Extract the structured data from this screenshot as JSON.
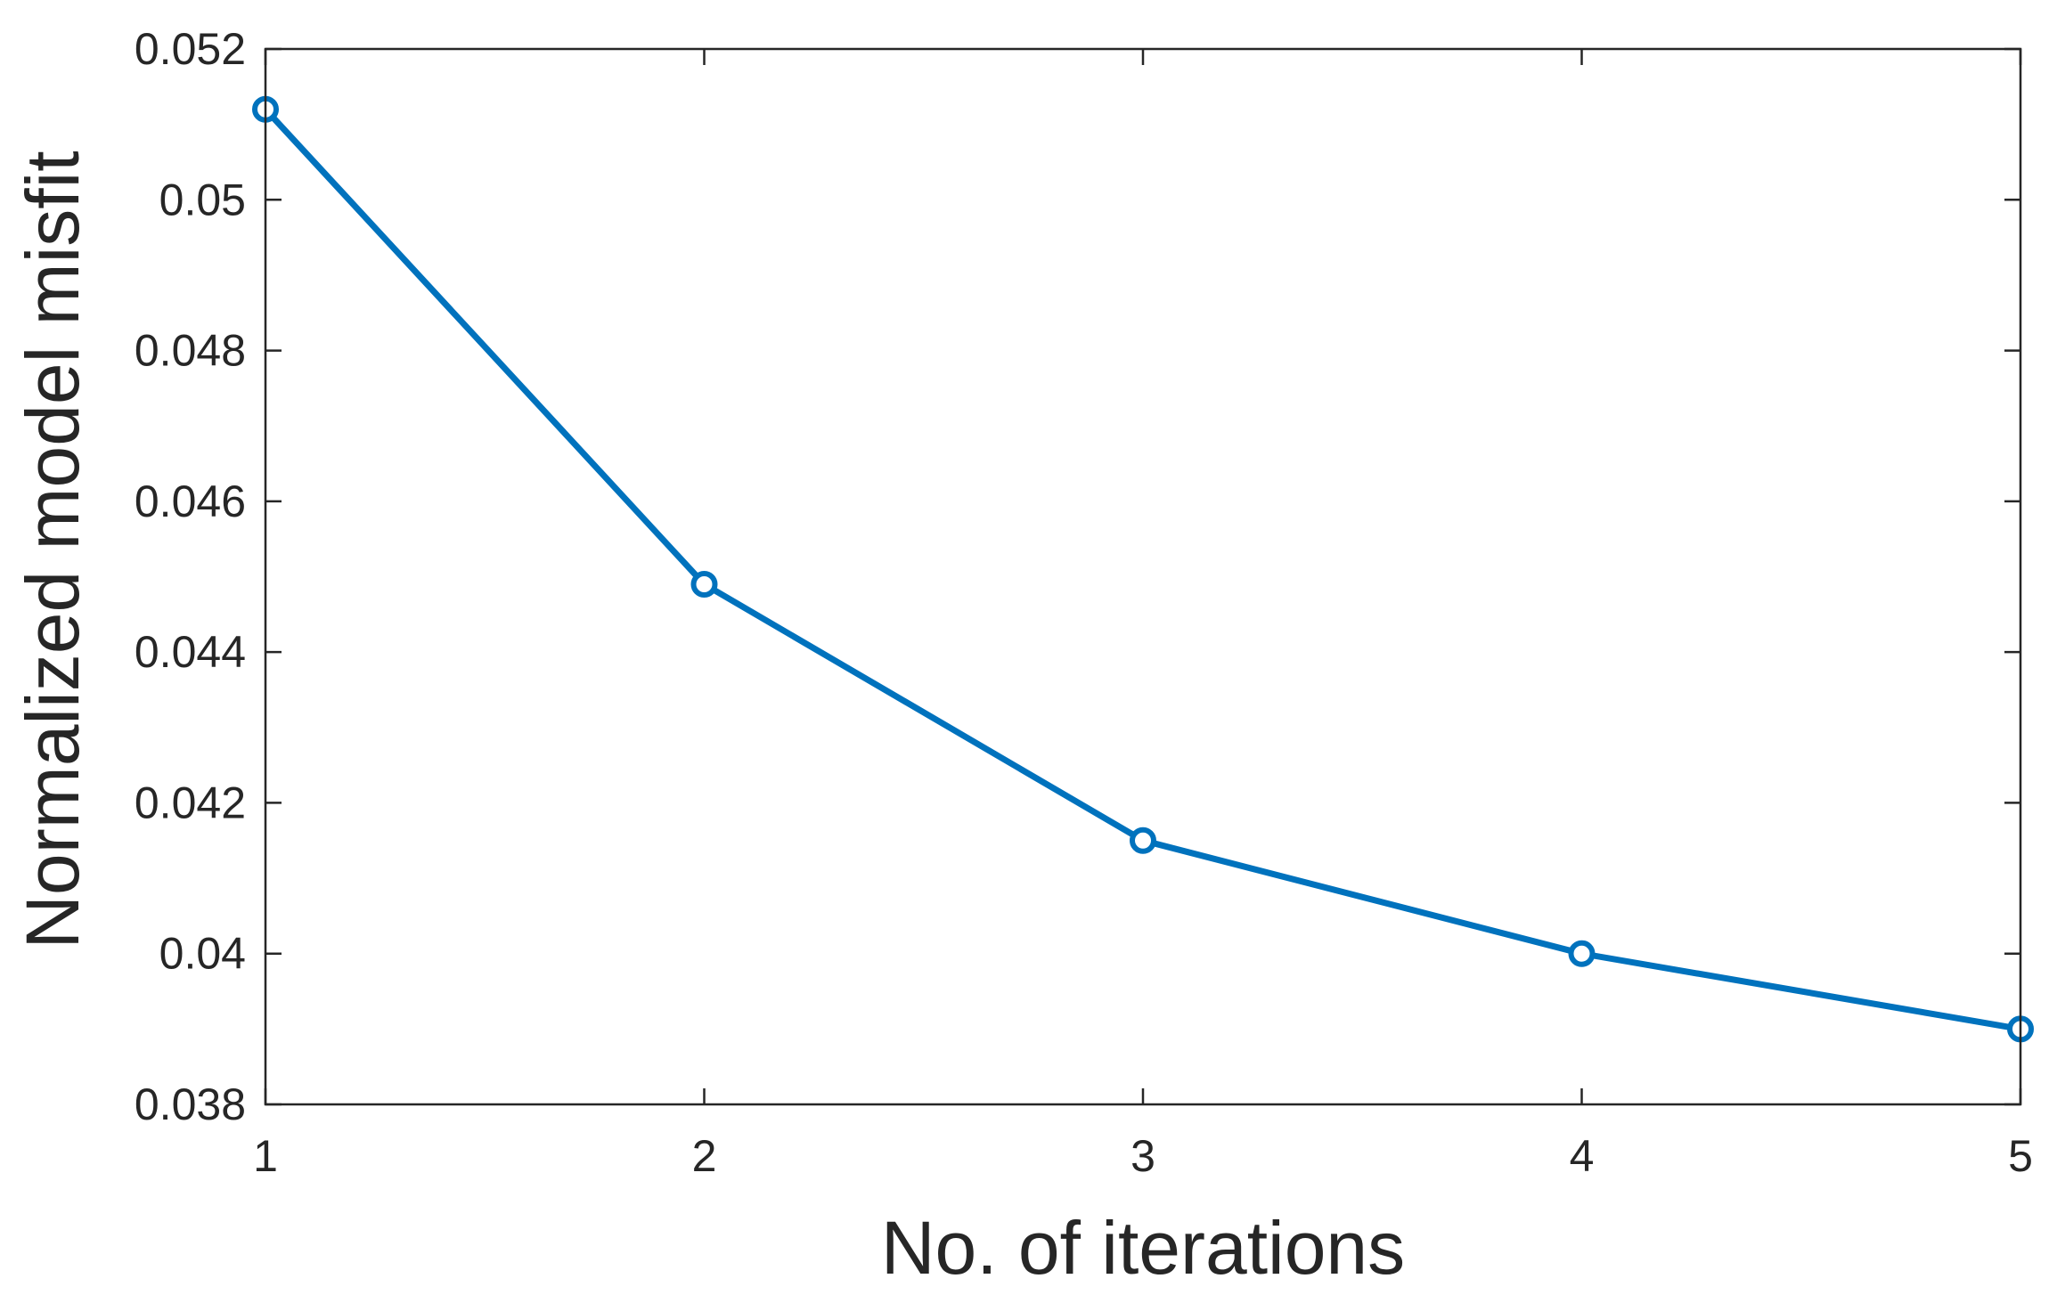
{
  "chart_data": {
    "type": "line",
    "title": "",
    "xlabel": "No. of iterations",
    "ylabel": "Normalized model misfit",
    "xlim": [
      1,
      5
    ],
    "ylim": [
      0.038,
      0.052
    ],
    "xticks": [
      1,
      2,
      3,
      4,
      5
    ],
    "xtick_labels": [
      "1",
      "2",
      "3",
      "4",
      "5"
    ],
    "yticks": [
      0.038,
      0.04,
      0.042,
      0.044,
      0.046,
      0.048,
      0.05,
      0.052
    ],
    "ytick_labels": [
      "0.038",
      "0.04",
      "0.042",
      "0.044",
      "0.046",
      "0.048",
      "0.05",
      "0.052"
    ],
    "grid": false,
    "box": true,
    "series": [
      {
        "x": [
          1,
          2,
          3,
          4,
          5
        ],
        "y": [
          0.0512,
          0.0449,
          0.0415,
          0.04,
          0.039
        ],
        "color": "#0072BD",
        "marker": "circle"
      }
    ]
  }
}
